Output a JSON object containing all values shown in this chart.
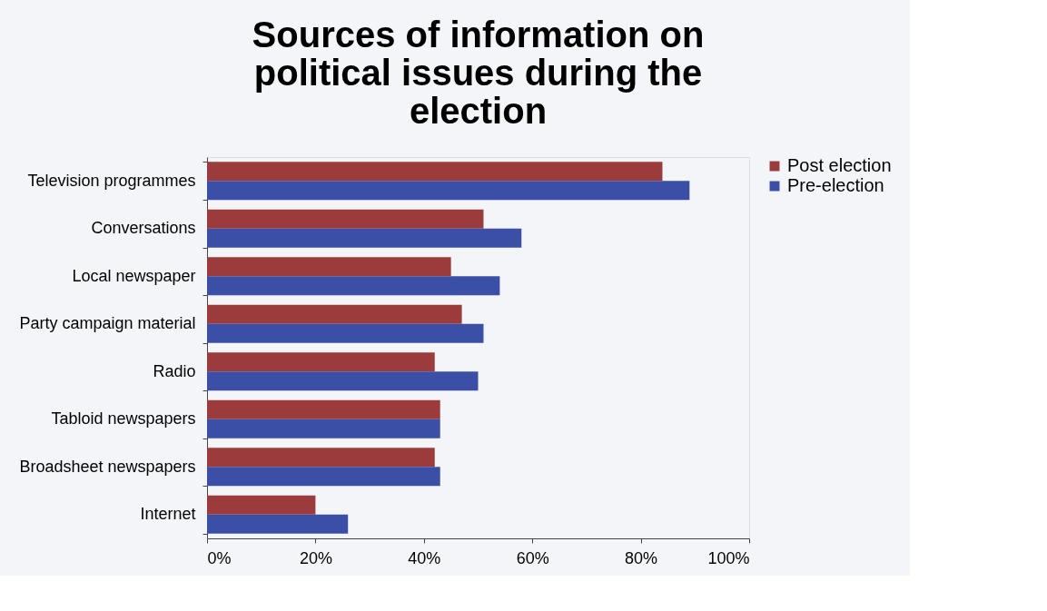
{
  "chart_data": {
    "type": "bar",
    "orientation": "horizontal",
    "title": "Sources of information on political issues during the election",
    "categories": [
      "Television programmes",
      "Conversations",
      "Local newspaper",
      "Party campaign material",
      "Radio",
      "Tabloid newspapers",
      "Broadsheet newspapers",
      "Internet"
    ],
    "series": [
      {
        "name": "Post election",
        "color": "#9b3b3b",
        "values": [
          84,
          51,
          45,
          47,
          42,
          43,
          42,
          20
        ]
      },
      {
        "name": "Pre-election",
        "color": "#3b4fa6",
        "values": [
          89,
          58,
          54,
          51,
          50,
          43,
          43,
          26
        ]
      }
    ],
    "xlim": [
      0,
      100
    ],
    "xticks": [
      {
        "value": 0,
        "label": "0%"
      },
      {
        "value": 20,
        "label": "20%"
      },
      {
        "value": 40,
        "label": "40%"
      },
      {
        "value": 60,
        "label": "60%"
      },
      {
        "value": 80,
        "label": "80%"
      },
      {
        "value": 100,
        "label": "100%"
      }
    ],
    "grid": false,
    "legend": "right"
  }
}
